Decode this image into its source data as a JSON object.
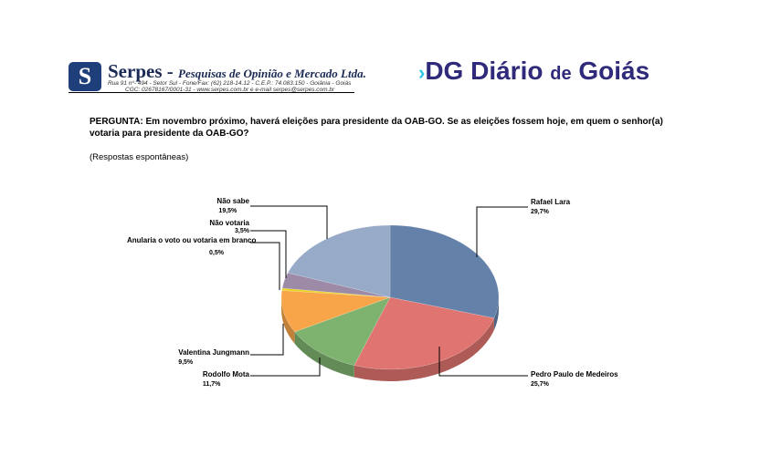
{
  "header": {
    "serpes": {
      "name": "Serpes -",
      "tagline": "Pesquisas de Opinião e Mercado Ltda.",
      "address_line": "Rua 91 nº- 494 - Setor Sul - Fone/Fax: (62) 218-14.12 - C.E.P.: 74.083.150 - Goiânia - Goiás",
      "cgc_line": "CGC: 02678167/0001-31 - www.serpes.com.br e e-mail serpes@serpes.com.br"
    },
    "diario_logo": {
      "mark": "DG",
      "name": "Diário",
      "de": "de",
      "name2": "Goiás",
      "color": "#2f2a79",
      "accent": "#2ec4e8"
    }
  },
  "question": "PERGUNTA: Em novembro próximo, haverá eleições para presidente da OAB-GO. Se as eleições fossem hoje, em quem o senhor(a) votaria para presidente da OAB-GO?",
  "note": "(Respostas espontâneas)",
  "chart_data": {
    "type": "pie",
    "style": "3d",
    "start_angle": "12 o'clock, clockwise",
    "slices": [
      {
        "label": "Rafael Lara",
        "value": 29.7,
        "display": "29,7%",
        "color": "#6481a9"
      },
      {
        "label": "Pedro Paulo de Medeiros",
        "value": 25.7,
        "display": "25,7%",
        "color": "#df7470"
      },
      {
        "label": "Rodolfo Mota",
        "value": 11.7,
        "display": "11,7%",
        "color": "#7eb26f"
      },
      {
        "label": "Valentina Jungmann",
        "value": 9.5,
        "display": "9,5%",
        "color": "#f8a549"
      },
      {
        "label": "Anularia o voto ou votaria em branco",
        "value": 0.5,
        "display": "0,5%",
        "color": "#e8d21c"
      },
      {
        "label": "Não votaria",
        "value": 3.5,
        "display": "3,5%",
        "color": "#9c8aa6"
      },
      {
        "label": "Não sabe",
        "value": 19.5,
        "display": "19,5%",
        "color": "#97abc8"
      }
    ]
  }
}
